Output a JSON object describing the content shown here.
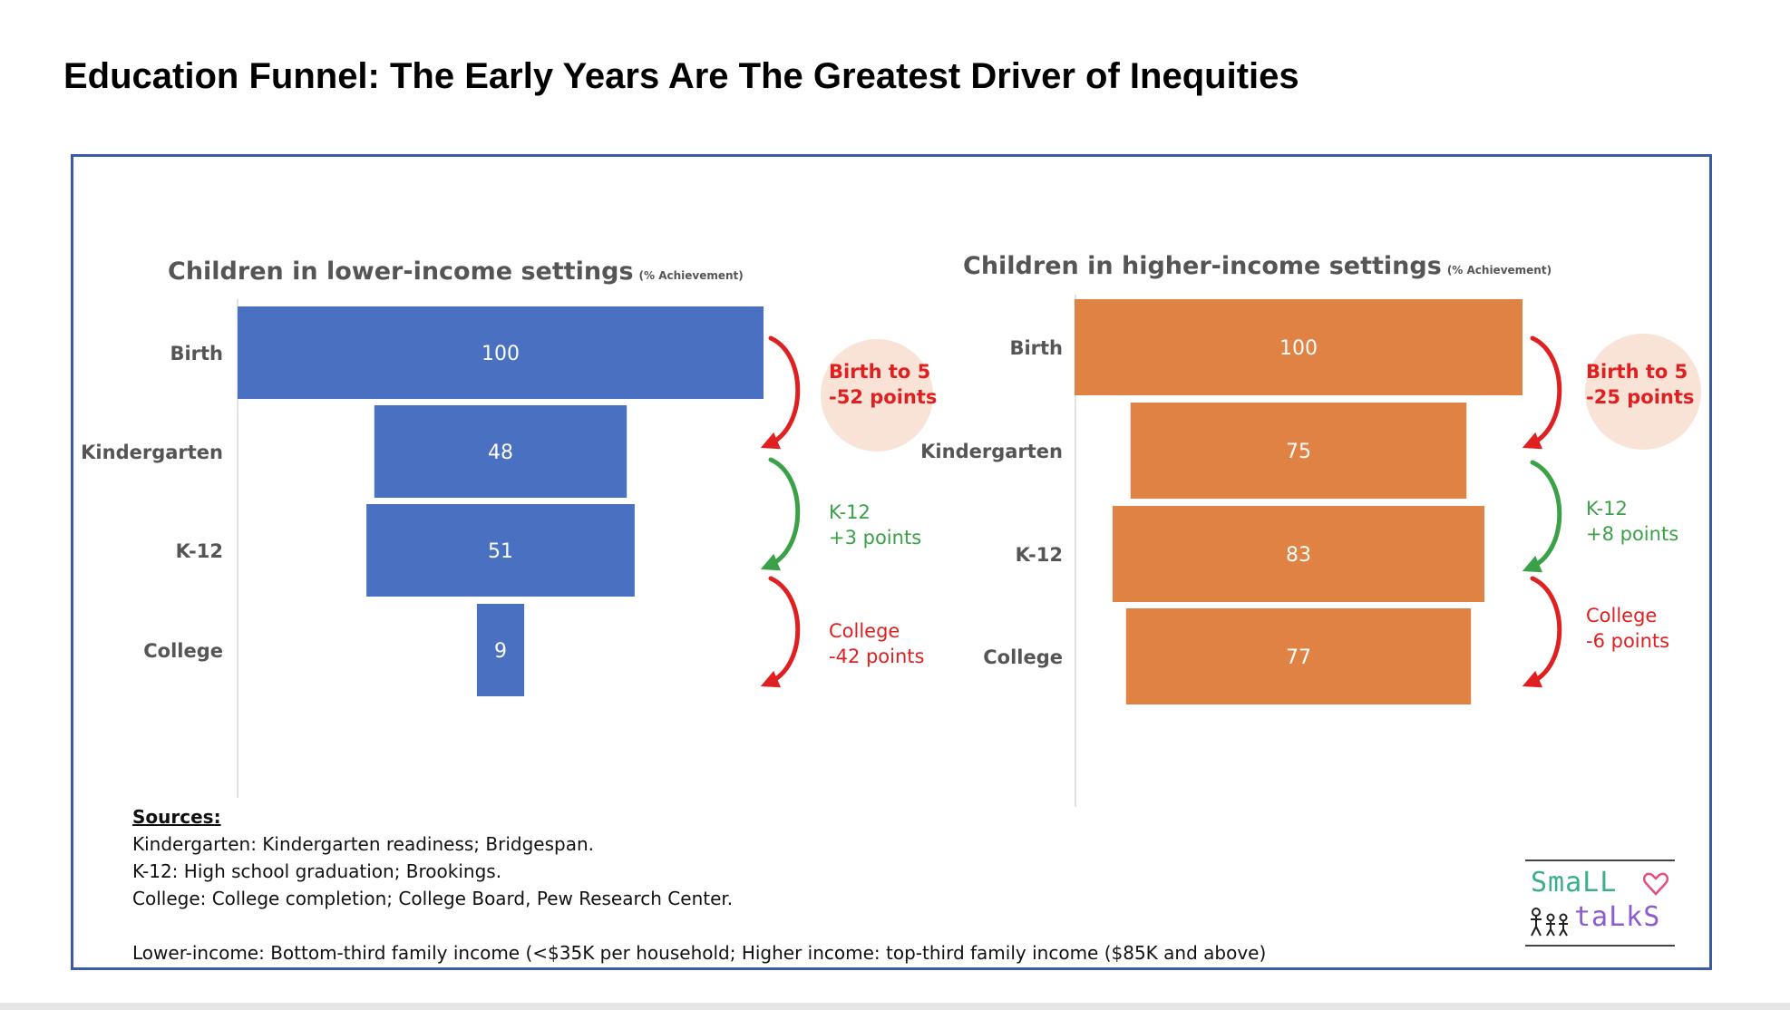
{
  "page": {
    "title": "Education Funnel: The Early Years Are The Greatest Driver of Inequities"
  },
  "chart_data": [
    {
      "type": "bar",
      "orientation": "horizontal-funnel",
      "title": "Children in lower-income settings",
      "subtitle": "(% Achievement)",
      "categories": [
        "Birth",
        "Kindergarten",
        "K-12",
        "College"
      ],
      "values": [
        100,
        48,
        51,
        9
      ],
      "xlim": [
        0,
        100
      ],
      "color": "#4a70c2",
      "grid": false,
      "annotations": [
        {
          "lines": [
            "Birth to 5",
            "-52 points"
          ],
          "color": "#e02020",
          "bold": true,
          "highlight": true,
          "highlight_color": "#f8e3d6",
          "arrow_color": "#e02020"
        },
        {
          "lines": [
            "K-12",
            "+3 points"
          ],
          "color": "#3aa147",
          "bold": false,
          "highlight": false,
          "arrow_color": "#3aa147"
        },
        {
          "lines": [
            "College",
            "-42 points"
          ],
          "color": "#e02020",
          "bold": false,
          "highlight": false,
          "arrow_color": "#e02020"
        }
      ]
    },
    {
      "type": "bar",
      "orientation": "horizontal-funnel",
      "title": "Children in higher-income settings",
      "subtitle": "(% Achievement)",
      "categories": [
        "Birth",
        "Kindergarten",
        "K-12",
        "College"
      ],
      "values": [
        100,
        75,
        83,
        77
      ],
      "xlim": [
        0,
        100
      ],
      "color": "#e08243",
      "grid": false,
      "annotations": [
        {
          "lines": [
            "Birth to 5",
            "-25 points"
          ],
          "color": "#e02020",
          "bold": true,
          "highlight": true,
          "highlight_color": "#f8e3d6",
          "arrow_color": "#e02020"
        },
        {
          "lines": [
            "K-12",
            "+8 points"
          ],
          "color": "#3aa147",
          "bold": false,
          "highlight": false,
          "arrow_color": "#3aa147"
        },
        {
          "lines": [
            "College",
            "-6 points"
          ],
          "color": "#e02020",
          "bold": false,
          "highlight": false,
          "arrow_color": "#e02020"
        }
      ]
    }
  ],
  "sources": {
    "heading": "Sources:",
    "lines": [
      "Kindergarten: Kindergarten readiness; Bridgespan.",
      "K-12: High school graduation; Brookings.",
      "College: College completion; College Board, Pew Research Center."
    ],
    "footnote": "Lower-income: Bottom-third family income (<$35K per household; Higher income: top-third family income ($85K and above)"
  },
  "logo": {
    "line1": "SmaLL",
    "line2": "taLkS",
    "colors": {
      "line1": "#3cae8d",
      "line2": "#8a5bd1",
      "heart": "#e0507a"
    }
  }
}
